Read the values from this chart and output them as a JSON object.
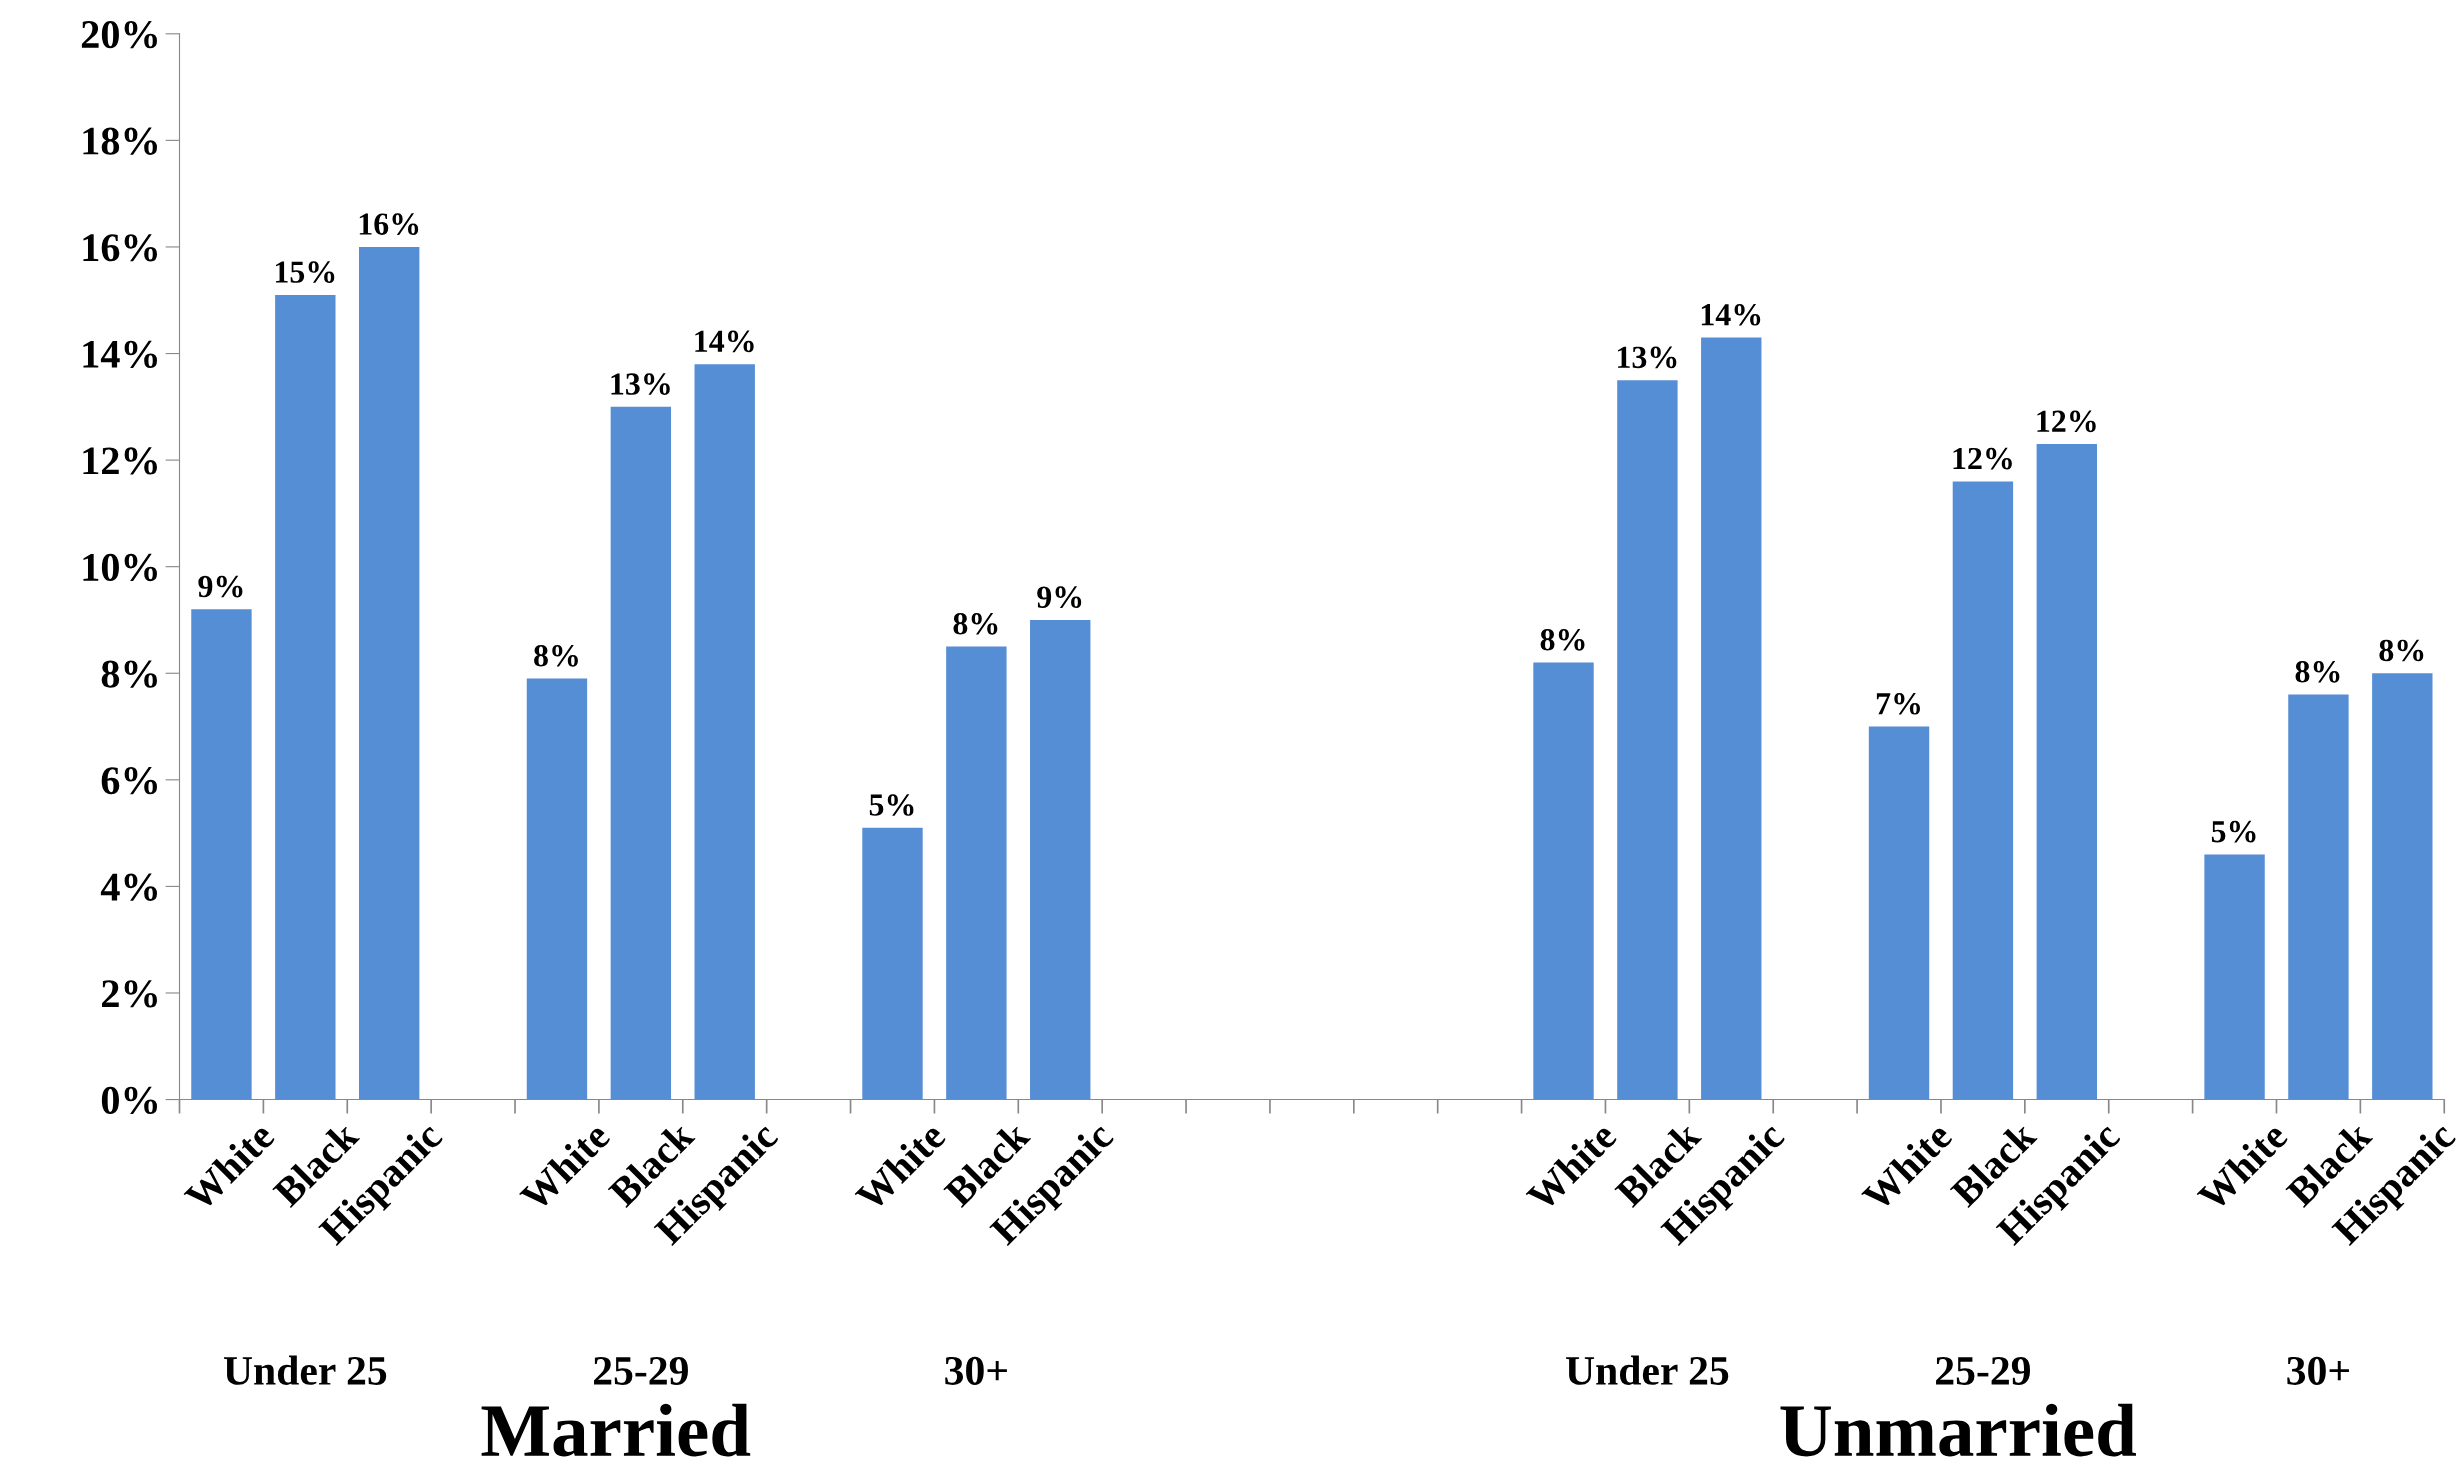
{
  "chart_data": {
    "type": "bar",
    "categories": [
      "White",
      "Black",
      "Hispanic",
      null,
      "White",
      "Black",
      "Hispanic",
      null,
      "White",
      "Black",
      "Hispanic",
      null,
      null,
      null,
      null,
      null,
      "White",
      "Black",
      "Hispanic",
      null,
      "White",
      "Black",
      "Hispanic",
      null,
      "White",
      "Black",
      "Hispanic"
    ],
    "values": [
      9.2,
      15.1,
      16.0,
      null,
      7.9,
      13.0,
      13.8,
      null,
      5.1,
      8.5,
      9.0,
      null,
      null,
      null,
      null,
      null,
      8.2,
      13.5,
      14.3,
      null,
      7.0,
      11.6,
      12.3,
      null,
      4.6,
      7.6,
      8.0
    ],
    "value_labels": [
      "9%",
      "15%",
      "16%",
      null,
      "8%",
      "13%",
      "14%",
      null,
      "5%",
      "8%",
      "9%",
      null,
      null,
      null,
      null,
      null,
      "8%",
      "13%",
      "14%",
      null,
      "7%",
      "12%",
      "12%",
      null,
      "5%",
      "8%",
      "8%"
    ],
    "color": "#558ed5",
    "ylim": [
      0,
      20
    ],
    "yticks": [
      {
        "value": 0,
        "label": "0%"
      },
      {
        "value": 2,
        "label": "2%"
      },
      {
        "value": 4,
        "label": "4%"
      },
      {
        "value": 6,
        "label": "6%"
      },
      {
        "value": 8,
        "label": "8%"
      },
      {
        "value": 10,
        "label": "10%"
      },
      {
        "value": 12,
        "label": "12%"
      },
      {
        "value": 14,
        "label": "14%"
      },
      {
        "value": 16,
        "label": "16%"
      },
      {
        "value": 18,
        "label": "18%"
      },
      {
        "value": 20,
        "label": "20%"
      }
    ],
    "grid": false,
    "annotations": [
      "Under 25",
      "25-29",
      "30+",
      "Under 25",
      "25-29",
      "30+",
      "Married",
      "Unmarried"
    ]
  }
}
